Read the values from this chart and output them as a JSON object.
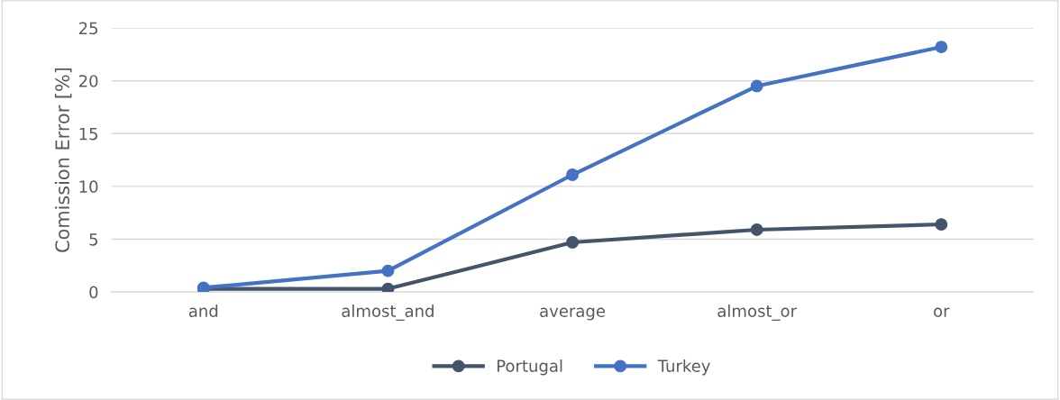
{
  "chart_data": {
    "type": "line",
    "ylabel": "Comission Error [%]",
    "categories": [
      "and",
      "almost_and",
      "average",
      "almost_or",
      "or"
    ],
    "series": [
      {
        "name": "Portugal",
        "color": "#44546a",
        "values": [
          0.3,
          0.3,
          4.7,
          5.9,
          6.4
        ]
      },
      {
        "name": "Turkey",
        "color": "#4472c4",
        "values": [
          0.4,
          2.0,
          11.1,
          19.5,
          23.2
        ]
      }
    ],
    "ylim": [
      0,
      25
    ],
    "yticks": [
      0,
      5,
      10,
      15,
      20,
      25
    ],
    "grid": "y",
    "legend": "bottom",
    "marker": "circle",
    "line_style": "solid"
  }
}
